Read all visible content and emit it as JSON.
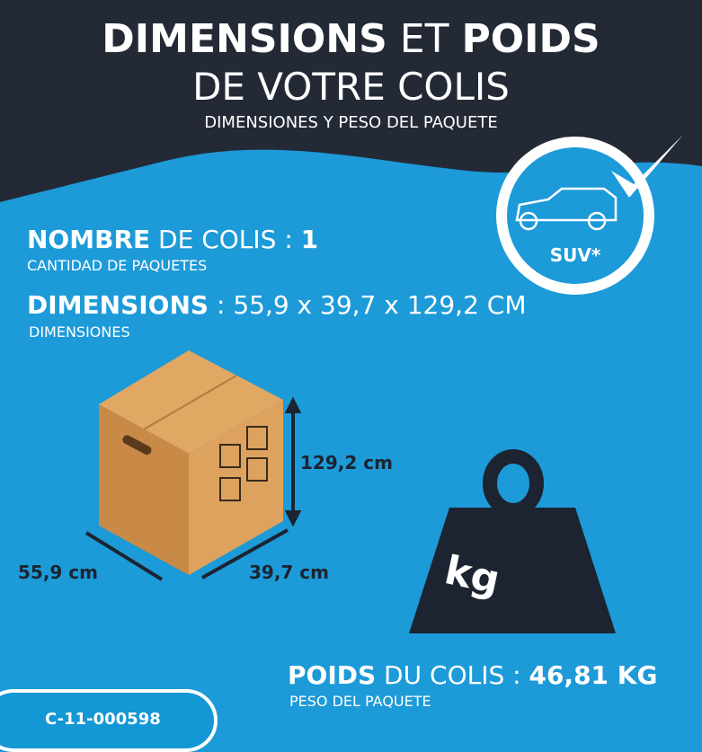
{
  "title": {
    "bold1": "DIMENSIONS",
    "mid": " ET ",
    "bold2": "POIDS",
    "line2": "DE VOTRE COLIS",
    "subtitle": "DIMENSIONES Y PESO DEL PAQUETE"
  },
  "badge": {
    "label": "SUV*",
    "icon": "suv-car-icon",
    "check_icon": "checkmark-icon"
  },
  "count": {
    "bold": "NOMBRE",
    "rest": " DE COLIS : ",
    "value": "1",
    "sub": "CANTIDAD DE PAQUETES"
  },
  "dimensions": {
    "bold": "DIMENSIONS",
    "rest": " : ",
    "value": "55,9 x 39,7 x 129,2 CM",
    "sub": "DIMENSIONES",
    "height_label": "129,2 cm",
    "width_label": "55,9 cm",
    "depth_label": "39,7 cm"
  },
  "weight": {
    "bold": "POIDS",
    "rest": " DU COLIS : ",
    "value": "46,81 KG",
    "sub": "PESO DEL PAQUETE",
    "icon_label": "kg"
  },
  "reference": "C-11-000598",
  "colors": {
    "background": "#1d9ad8",
    "header": "#232a36",
    "box": "#d89a55"
  }
}
